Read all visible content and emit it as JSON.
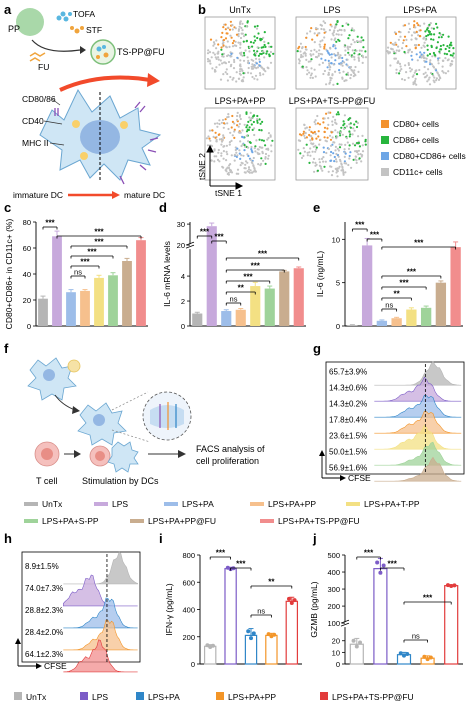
{
  "panel_letters": [
    "a",
    "b",
    "c",
    "d",
    "e",
    "f",
    "g",
    "h",
    "i",
    "j"
  ],
  "colors": {
    "UnTx": "#b5b5b5",
    "LPS": "#c7a9dc",
    "LPS+PA": "#9dbde9",
    "LPS+PA+PP": "#f6c08d",
    "LPS+PA+T-PP": "#f3e083",
    "LPS+PA+S-PP": "#9fd39a",
    "LPS+PA+PP@FU": "#c9ad8f",
    "LPS+PA+TS-PP@FU": "#f18d8d",
    "LPS_dark": "#7c5cc7",
    "LPS+PA_dark": "#2f86c8",
    "LPS+PA+PP_dark": "#f39528",
    "LPS+PA+TS-PP@FU_dark": "#e23c3c",
    "CD80": "#f3922e",
    "CD86": "#27b53d",
    "CD80CD86": "#6da6e6",
    "CD11c": "#c3c3c3"
  },
  "panel_a": {
    "labels": {
      "pp": "PP",
      "tofa": "TOFA",
      "stf": "STF",
      "fu": "FU",
      "product": "TS-PP@FU",
      "cd8086": "CD80/86",
      "cd40": "CD40",
      "mhc": "MHC II",
      "immature": "immature DC",
      "mature": "mature DC"
    },
    "icons": [
      "pp-nanoparticle-icon",
      "tofa-molecule-icon",
      "stf-molecule-icon",
      "fu-molecule-icon",
      "ts-pp-fu-nanoparticle-icon",
      "dendritic-cell-icon"
    ]
  },
  "panel_b": {
    "titles": [
      "UnTx",
      "LPS",
      "LPS+PA",
      "LPS+PA+PP",
      "LPS+PA+TS-PP@FU"
    ],
    "axis_x": "tSNE 1",
    "axis_y": "tSNE 2",
    "legend": [
      "CD80+ cells",
      "CD86+ cells",
      "CD80+CD86+ cells",
      "CD11c+ cells"
    ]
  },
  "panel_f": {
    "labels": {
      "tcell": "T cell",
      "stim": "Stimulation by DCs",
      "facs1": "FACS analysis of",
      "facs2": "cell proliferation"
    },
    "icons": [
      "dc-nanoparticle-icon",
      "t-cell-icon",
      "stimulated-dc-icon",
      "coculture-zoom-icon"
    ]
  },
  "legend_main": [
    "UnTx",
    "LPS",
    "LPS+PA",
    "LPS+PA+PP",
    "LPS+PA+T-PP",
    "LPS+PA+S-PP",
    "LPS+PA+PP@FU",
    "LPS+PA+TS-PP@FU"
  ],
  "legend_bottom": [
    "UnTx",
    "LPS",
    "LPS+PA",
    "LPS+PA+PP",
    "LPS+PA+TS-PP@FU"
  ],
  "chart_data": [
    {
      "id": "c",
      "type": "bar",
      "ylabel": "CD80+CD86+ in CD11c+ (%)",
      "ylim": [
        0,
        80
      ],
      "yticks": [
        0,
        20,
        40,
        60,
        80
      ],
      "categories": [
        "UnTx",
        "LPS",
        "LPS+PA",
        "LPS+PA+PP",
        "LPS+PA+T-PP",
        "LPS+PA+S-PP",
        "LPS+PA+PP@FU",
        "LPS+PA+TS-PP@FU"
      ],
      "values": [
        21,
        69,
        26,
        27,
        37,
        39,
        50,
        66
      ],
      "errors": [
        2,
        4,
        2,
        1,
        2,
        2,
        2,
        2
      ],
      "significance": [
        {
          "from": 0,
          "to": 1,
          "label": "***"
        },
        {
          "from": 1,
          "to": 7,
          "label": "***"
        },
        {
          "from": 2,
          "to": 6,
          "label": "***"
        },
        {
          "from": 2,
          "to": 5,
          "label": "***"
        },
        {
          "from": 2,
          "to": 4,
          "label": "***"
        },
        {
          "from": 2,
          "to": 3,
          "label": "ns"
        }
      ]
    },
    {
      "id": "d",
      "type": "bar",
      "ylabel": "IL-6 mRNA levels",
      "axis_break": [
        6,
        20
      ],
      "yticks": [
        0,
        2,
        4,
        20,
        30
      ],
      "categories": [
        "UnTx",
        "LPS",
        "LPS+PA",
        "LPS+PA+PP",
        "LPS+PA+T-PP",
        "LPS+PA+S-PP",
        "LPS+PA+PP@FU",
        "LPS+PA+TS-PP@FU"
      ],
      "values": [
        1.0,
        29,
        1.2,
        1.3,
        3.2,
        3.0,
        7.5,
        9.0
      ],
      "errors": [
        0.1,
        1.5,
        0.1,
        0.1,
        0.3,
        0.2,
        0.5,
        0.6
      ],
      "significance": [
        {
          "from": 0,
          "to": 1,
          "label": "***"
        },
        {
          "from": 1,
          "to": 2,
          "label": "***"
        },
        {
          "from": 2,
          "to": 7,
          "label": "***"
        },
        {
          "from": 2,
          "to": 6,
          "label": "***"
        },
        {
          "from": 2,
          "to": 5,
          "label": "***"
        },
        {
          "from": 2,
          "to": 4,
          "label": "**"
        },
        {
          "from": 2,
          "to": 3,
          "label": "ns"
        }
      ]
    },
    {
      "id": "e",
      "type": "bar",
      "ylabel": "IL-6 (ng/mL)",
      "ylim": [
        0,
        12
      ],
      "yticks": [
        0,
        5,
        10
      ],
      "categories": [
        "UnTx",
        "LPS",
        "LPS+PA",
        "LPS+PA+PP",
        "LPS+PA+T-PP",
        "LPS+PA+S-PP",
        "LPS+PA+PP@FU",
        "LPS+PA+TS-PP@FU"
      ],
      "values": [
        0.1,
        9.3,
        0.6,
        0.9,
        1.9,
        2.1,
        5.0,
        9.1
      ],
      "errors": [
        0.05,
        0.8,
        0.1,
        0.1,
        0.2,
        0.2,
        0.2,
        0.6
      ],
      "significance": [
        {
          "from": 0,
          "to": 1,
          "label": "***"
        },
        {
          "from": 1,
          "to": 2,
          "label": "***"
        },
        {
          "from": 2,
          "to": 7,
          "label": "***"
        },
        {
          "from": 2,
          "to": 6,
          "label": "***"
        },
        {
          "from": 2,
          "to": 5,
          "label": "***"
        },
        {
          "from": 2,
          "to": 4,
          "label": "**"
        },
        {
          "from": 2,
          "to": 3,
          "label": "ns"
        }
      ]
    },
    {
      "id": "g",
      "type": "histogram",
      "xlabel": "CFSE",
      "series": [
        {
          "group": "UnTx",
          "label": "65.7±3.9%"
        },
        {
          "group": "LPS",
          "label": "14.3±0.6%"
        },
        {
          "group": "LPS+PA",
          "label": "14.3±0.2%"
        },
        {
          "group": "LPS+PA+PP",
          "label": "17.8±0.4%"
        },
        {
          "group": "LPS+PA+T-PP",
          "label": "23.6±1.5%"
        },
        {
          "group": "LPS+PA+S-PP",
          "label": "50.0±1.5%"
        },
        {
          "group": "LPS+PA+PP@FU",
          "label": "56.9±1.6%"
        }
      ]
    },
    {
      "id": "h",
      "type": "histogram",
      "xlabel": "CFSE",
      "series": [
        {
          "group": "UnTx",
          "label": "8.9±1.5%"
        },
        {
          "group": "LPS",
          "label": "74.0±7.3%"
        },
        {
          "group": "LPS+PA",
          "label": "28.8±2.3%"
        },
        {
          "group": "LPS+PA+PP",
          "label": "28.4±2.0%"
        },
        {
          "group": "LPS+PA+TS-PP@FU",
          "label": "64.1±2.3%"
        }
      ]
    },
    {
      "id": "i",
      "type": "bar",
      "ylabel": "IFN-γ (pg/mL)",
      "ylim": [
        0,
        800
      ],
      "yticks": [
        0,
        200,
        400,
        600,
        800
      ],
      "categories": [
        "UnTx",
        "LPS",
        "LPS+PA",
        "LPS+PA+PP",
        "LPS+PA+TS-PP@FU"
      ],
      "values": [
        130,
        700,
        210,
        210,
        460
      ],
      "errors": [
        12,
        10,
        50,
        15,
        30
      ],
      "significance": [
        {
          "from": 0,
          "to": 1,
          "label": "***"
        },
        {
          "from": 1,
          "to": 2,
          "label": "***"
        },
        {
          "from": 2,
          "to": 4,
          "label": "**"
        },
        {
          "from": 2,
          "to": 3,
          "label": "ns"
        }
      ]
    },
    {
      "id": "j",
      "type": "bar",
      "ylabel": "GZMB (pg/mL)",
      "axis_break": [
        30,
        100
      ],
      "yticks": [
        0,
        10,
        20,
        100,
        200,
        300,
        400,
        500
      ],
      "categories": [
        "UnTx",
        "LPS",
        "LPS+PA",
        "LPS+PA+PP",
        "LPS+PA+TS-PP@FU"
      ],
      "values": [
        17,
        420,
        8,
        5,
        320
      ],
      "errors": [
        5,
        60,
        2,
        2,
        5
      ],
      "significance": [
        {
          "from": 0,
          "to": 1,
          "label": "***"
        },
        {
          "from": 1,
          "to": 2,
          "label": "***"
        },
        {
          "from": 2,
          "to": 4,
          "label": "***"
        },
        {
          "from": 2,
          "to": 3,
          "label": "ns"
        }
      ]
    }
  ]
}
